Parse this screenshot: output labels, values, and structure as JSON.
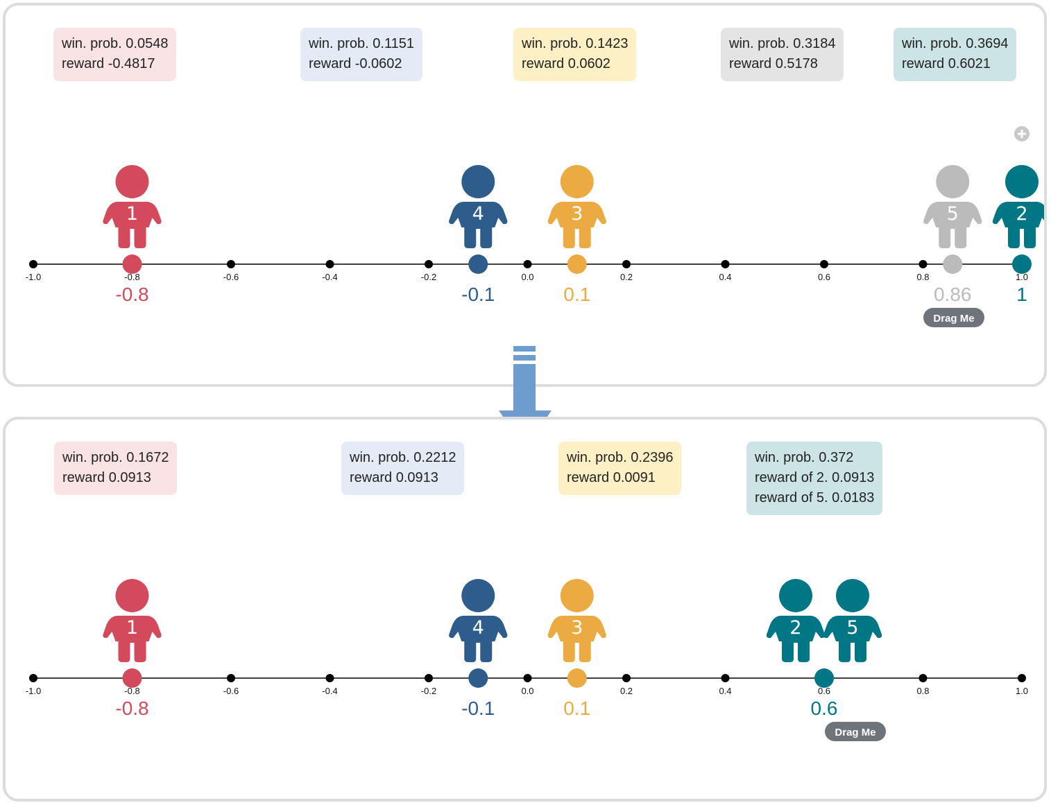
{
  "colors": {
    "red": "#d24a5c",
    "blue": "#2e5d8c",
    "yellow": "#ecab42",
    "gray": "#bbbbbb",
    "teal": "#017684",
    "red_bg": "#f9e3e5",
    "blue_bg": "#e4eaf6",
    "yellow_bg": "#fdf0c4",
    "gray_bg": "#e4e4e4",
    "teal_bg": "#cce4e6",
    "arrow": "#6e9ccf",
    "drag_bg": "#6e7479"
  },
  "axis": {
    "ticks": [
      -1.0,
      -0.8,
      -0.6,
      -0.4,
      -0.2,
      0.0,
      0.2,
      0.4,
      0.6,
      0.8,
      1.0
    ],
    "tick_labels": [
      "-1.0",
      "-0.8",
      "-0.6",
      "-0.4",
      "-0.2",
      "0.0",
      "0.2",
      "0.4",
      "0.6",
      "0.8",
      "1.0"
    ]
  },
  "top_panel": {
    "info_boxes": [
      {
        "color": "red",
        "lines": [
          "win. prob. 0.0548",
          "reward -0.4817"
        ]
      },
      {
        "color": "blue",
        "lines": [
          "win. prob. 0.1151",
          "reward -0.0602"
        ]
      },
      {
        "color": "yellow",
        "lines": [
          "win. prob. 0.1423",
          "reward 0.0602"
        ]
      },
      {
        "color": "gray",
        "lines": [
          "win. prob. 0.3184",
          "reward 0.5178"
        ]
      },
      {
        "color": "teal",
        "lines": [
          "win. prob. 0.3694",
          "reward 0.6021"
        ]
      }
    ],
    "players": [
      {
        "number": "1",
        "color": "red",
        "position": -0.8,
        "value_label": "-0.8"
      },
      {
        "number": "4",
        "color": "blue",
        "position": -0.1,
        "value_label": "-0.1"
      },
      {
        "number": "3",
        "color": "yellow",
        "position": 0.1,
        "value_label": "0.1"
      },
      {
        "number": "5",
        "color": "gray",
        "position": 0.86,
        "value_label": "0.86"
      },
      {
        "number": "2",
        "color": "teal",
        "position": 1.0,
        "value_label": "1"
      }
    ],
    "drag_label": "Drag Me",
    "add_icon": "plus-circle-icon"
  },
  "bottom_panel": {
    "info_boxes": [
      {
        "color": "red",
        "lines": [
          "win. prob. 0.1672",
          "reward 0.0913"
        ]
      },
      {
        "color": "blue",
        "lines": [
          "win. prob. 0.2212",
          "reward 0.0913"
        ]
      },
      {
        "color": "yellow",
        "lines": [
          "win. prob. 0.2396",
          "reward 0.0091"
        ]
      },
      {
        "color": "teal",
        "lines": [
          "win. prob. 0.372",
          "reward of 2. 0.0913",
          "reward of 5. 0.0183"
        ]
      }
    ],
    "players": [
      {
        "number": "1",
        "color": "red",
        "position": -0.8,
        "value_label": "-0.8"
      },
      {
        "number": "4",
        "color": "blue",
        "position": -0.1,
        "value_label": "-0.1"
      },
      {
        "number": "3",
        "color": "yellow",
        "position": 0.1,
        "value_label": "0.1"
      },
      {
        "number": "2",
        "color": "teal",
        "position": 0.6,
        "value_label": ""
      },
      {
        "number": "5",
        "color": "teal",
        "position": 0.6,
        "value_label": "0.6"
      }
    ],
    "drag_label": "Drag Me"
  },
  "transition_icon": "down-arrow-icon"
}
